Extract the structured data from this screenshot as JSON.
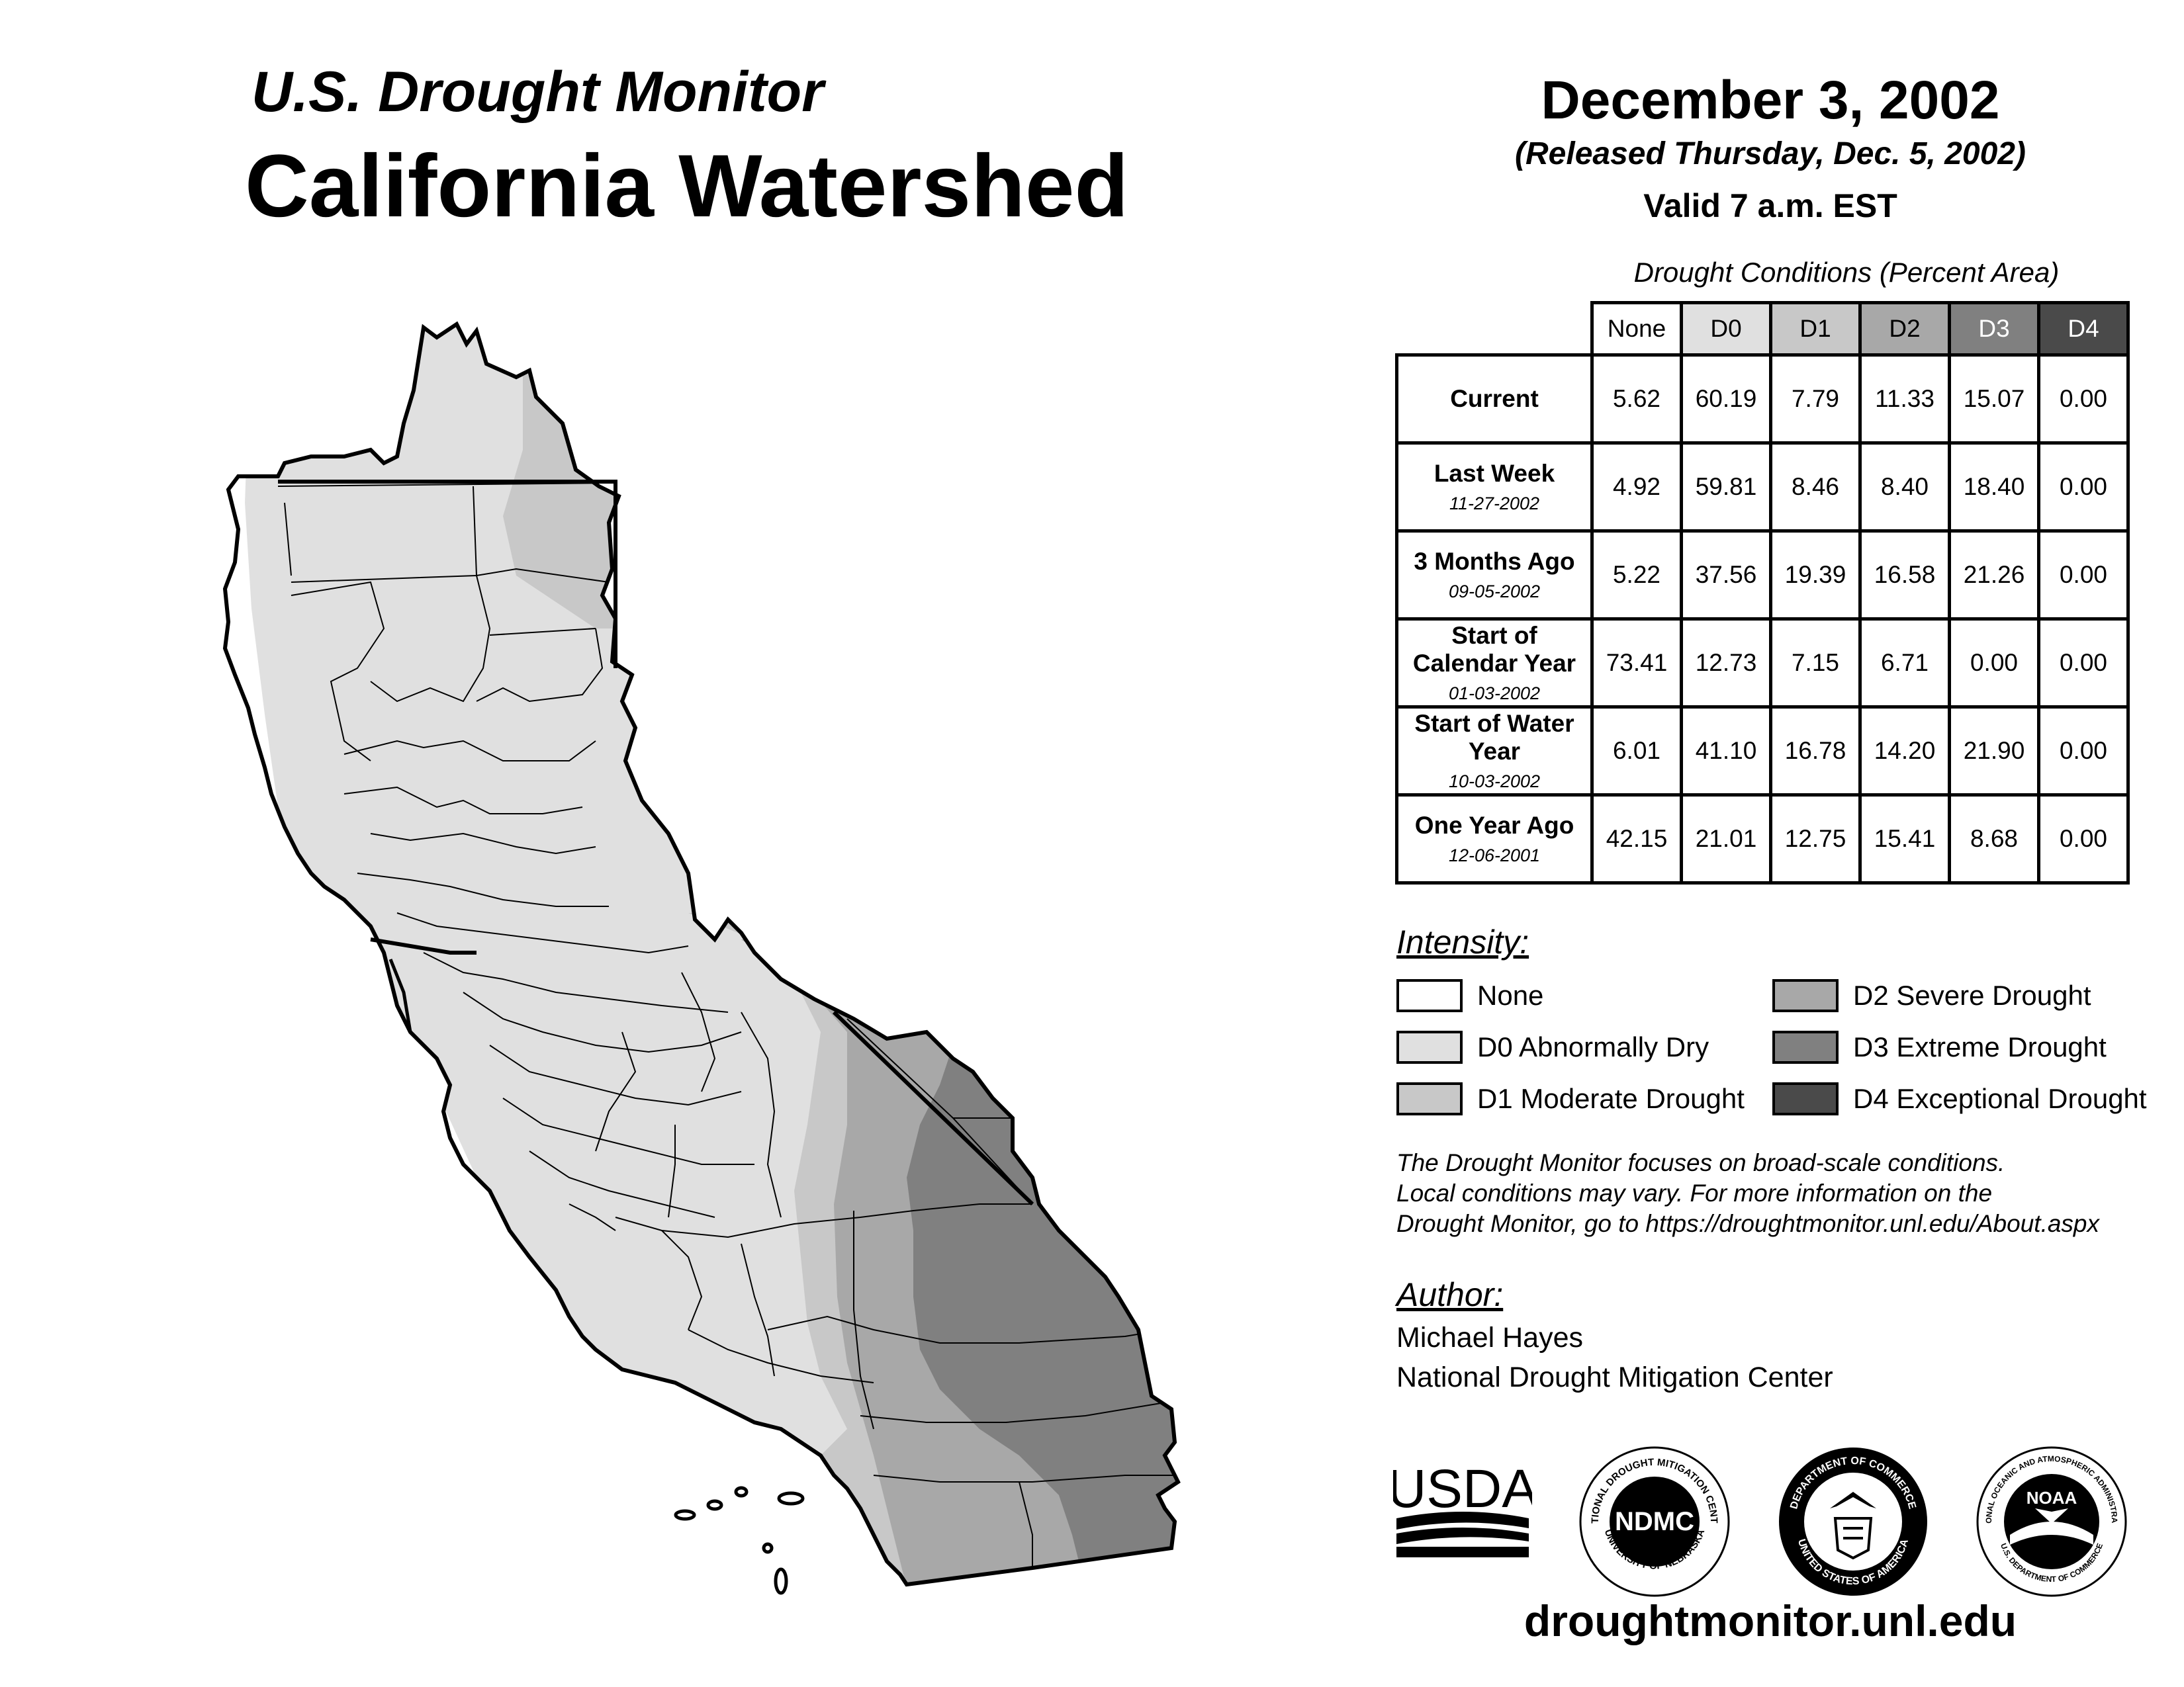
{
  "header": {
    "title_line1": "U.S. Drought Monitor",
    "title_line2": "California Watershed",
    "date": "December 3, 2002",
    "released": "(Released Thursday, Dec. 5, 2002)",
    "valid": "Valid 7 a.m. EST"
  },
  "table": {
    "caption": "Drought Conditions (Percent Area)",
    "columns": [
      "None",
      "D0",
      "D1",
      "D2",
      "D3",
      "D4"
    ],
    "column_colors": [
      "#ffffff",
      "#e0e0e0",
      "#c8c8c8",
      "#a8a8a8",
      "#808080",
      "#4a4a4a"
    ],
    "column_text_colors": [
      "#000000",
      "#000000",
      "#000000",
      "#000000",
      "#ffffff",
      "#ffffff"
    ],
    "rows": [
      {
        "label": "Current",
        "date": "",
        "values": [
          "5.62",
          "60.19",
          "7.79",
          "11.33",
          "15.07",
          "0.00"
        ]
      },
      {
        "label": "Last Week",
        "date": "11-27-2002",
        "values": [
          "4.92",
          "59.81",
          "8.46",
          "8.40",
          "18.40",
          "0.00"
        ]
      },
      {
        "label": "3 Months Ago",
        "date": "09-05-2002",
        "values": [
          "5.22",
          "37.56",
          "19.39",
          "16.58",
          "21.26",
          "0.00"
        ]
      },
      {
        "label": "Start of Calendar Year",
        "date": "01-03-2002",
        "values": [
          "73.41",
          "12.73",
          "7.15",
          "6.71",
          "0.00",
          "0.00"
        ]
      },
      {
        "label": "Start of Water Year",
        "date": "10-03-2002",
        "values": [
          "6.01",
          "41.10",
          "16.78",
          "14.20",
          "21.90",
          "0.00"
        ]
      },
      {
        "label": "One Year Ago",
        "date": "12-06-2001",
        "values": [
          "42.15",
          "21.01",
          "12.75",
          "15.41",
          "8.68",
          "0.00"
        ]
      }
    ]
  },
  "legend": {
    "title": "Intensity:",
    "items": [
      {
        "label": "None",
        "color": "#ffffff"
      },
      {
        "label": "D0 Abnormally Dry",
        "color": "#e0e0e0"
      },
      {
        "label": "D1 Moderate Drought",
        "color": "#c8c8c8"
      },
      {
        "label": "D2 Severe Drought",
        "color": "#a8a8a8"
      },
      {
        "label": "D3 Extreme Drought",
        "color": "#808080"
      },
      {
        "label": "D4 Exceptional Drought",
        "color": "#4a4a4a"
      }
    ]
  },
  "note": {
    "line1": "The Drought Monitor focuses on broad-scale conditions.",
    "line2": "Local conditions may vary. For more information on the",
    "line3": "Drought Monitor, go to https://droughtmonitor.unl.edu/About.aspx"
  },
  "author": {
    "label": "Author:",
    "name": "Michael Hayes",
    "org": "National Drought Mitigation Center"
  },
  "logos": {
    "usda": "USDA",
    "ndmc": "NDMC",
    "ndmc_top": "NATIONAL DROUGHT MITIGATION CENTER",
    "ndmc_bottom": "UNIVERSITY OF NEBRASKA",
    "doc_top": "DEPARTMENT OF COMMERCE",
    "doc_bottom": "UNITED STATES OF AMERICA",
    "noaa": "NOAA",
    "noaa_top": "NATIONAL OCEANIC AND ATMOSPHERIC ADMINISTRATION",
    "noaa_bottom": "U.S. DEPARTMENT OF COMMERCE"
  },
  "footer": {
    "site": "droughtmonitor.unl.edu"
  }
}
